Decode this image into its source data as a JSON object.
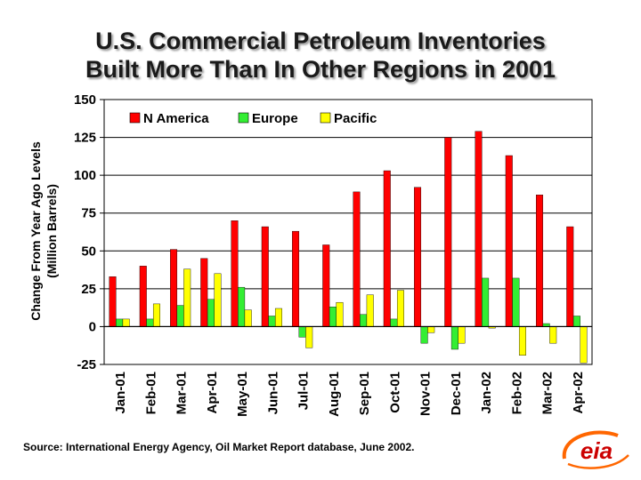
{
  "title": {
    "line1": "U.S. Commercial Petroleum Inventories",
    "line2": "Built More Than In Other Regions in 2001"
  },
  "source": "Source: International Energy Agency, Oil Market Report database, June 2002.",
  "logo": {
    "text": "eia",
    "icon": "eia-logo"
  },
  "colors": {
    "n_america": "#ff0000",
    "europe": "#33ee33",
    "pacific": "#ffff00"
  },
  "chart_data": {
    "type": "bar",
    "title": "U.S. Commercial Petroleum Inventories Built More Than In Other Regions in 2001",
    "xlabel": "",
    "ylabel": "Change From Year Ago Levels (Million Barrels)",
    "ylabel_line1": "Change From Year Ago Levels",
    "ylabel_line2": "(Million Barrels)",
    "ylim": [
      -25,
      150
    ],
    "yticks": [
      150,
      125,
      100,
      75,
      50,
      25,
      0,
      -25
    ],
    "grid": true,
    "legend_position": "top-left",
    "categories": [
      "Jan-01",
      "Feb-01",
      "Mar-01",
      "Apr-01",
      "May-01",
      "Jun-01",
      "Jul-01",
      "Aug-01",
      "Sep-01",
      "Oct-01",
      "Nov-01",
      "Dec-01",
      "Jan-02",
      "Feb-02",
      "Mar-02",
      "Apr-02"
    ],
    "series": [
      {
        "name": "N America",
        "color": "#ff0000",
        "values": [
          33,
          40,
          51,
          45,
          70,
          66,
          63,
          54,
          89,
          103,
          92,
          125,
          129,
          113,
          87,
          66
        ]
      },
      {
        "name": "Europe",
        "color": "#33ee33",
        "values": [
          5,
          5,
          14,
          18,
          26,
          7,
          -7,
          13,
          8,
          5,
          -11,
          -15,
          32,
          32,
          2,
          7
        ]
      },
      {
        "name": "Pacific",
        "color": "#ffff00",
        "values": [
          5,
          15,
          38,
          35,
          11,
          12,
          -14,
          16,
          21,
          24,
          -4,
          -11,
          -1,
          -19,
          -11,
          -24
        ]
      }
    ]
  }
}
